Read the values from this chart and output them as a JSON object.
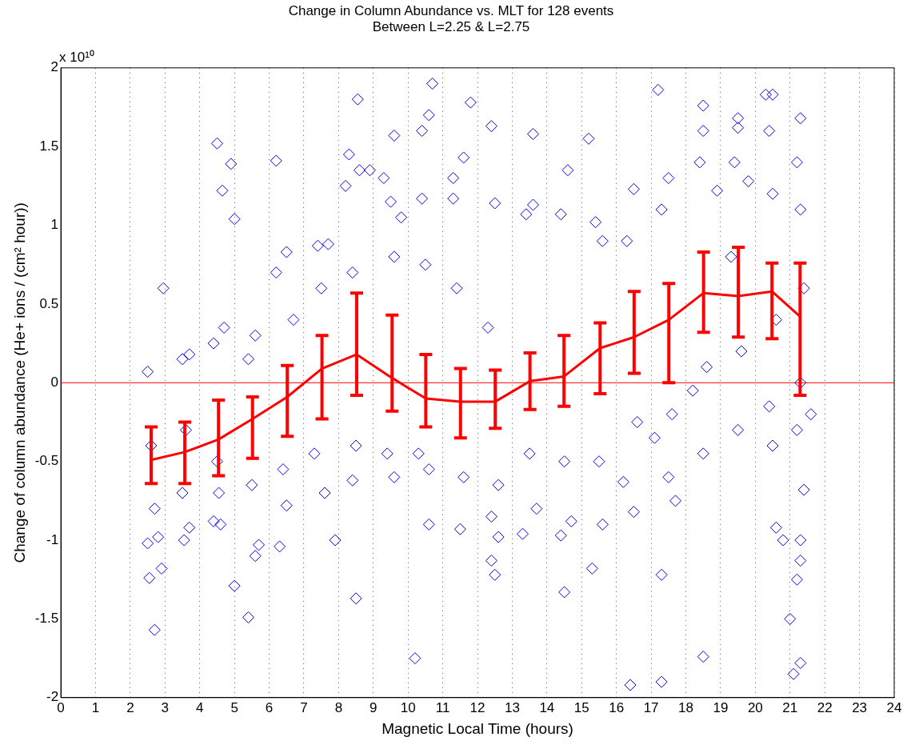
{
  "chart_data": {
    "type": "scatter",
    "title": "Change in Column Abundance vs. MLT for 128 events",
    "subtitle": "Between L=2.25 & L=2.75",
    "xlabel": "Magnetic Local Time (hours)",
    "ylabel": "Change of column abundance (He+ ions / (cm² hour))",
    "annotations": [
      "x 10¹⁰"
    ],
    "xlim": [
      0,
      24
    ],
    "xticks": [
      0,
      1,
      2,
      3,
      4,
      5,
      6,
      7,
      8,
      9,
      10,
      11,
      12,
      13,
      14,
      15,
      16,
      17,
      18,
      19,
      20,
      21,
      22,
      23,
      24
    ],
    "ylim": [
      -2,
      2
    ],
    "yticks": [
      -2,
      -1.5,
      -1,
      -0.5,
      0,
      0.5,
      1,
      1.5,
      2
    ],
    "grid": "x",
    "legend": false,
    "ref_lines": [
      {
        "axis": "y",
        "value": 0,
        "color": "#ff0000"
      }
    ],
    "series": [
      {
        "color": "#0000ff",
        "marker": "diamond",
        "x": [
          2.95,
          2.7,
          4.5,
          4.65,
          4.9,
          5.0,
          5.0,
          5.4,
          6.2,
          8.3,
          8.55,
          8.5,
          9.6,
          10.4,
          10.6,
          10.7,
          10.2,
          11.8,
          11.6,
          12.4,
          12.5,
          13.6,
          14.5,
          15.2,
          16.4,
          17.2,
          17.3,
          17.3,
          18.5,
          18.5,
          19.5,
          20.3,
          20.5,
          20.6,
          21.0,
          21.1,
          21.3,
          21.3,
          21.6,
          21.3,
          2.5,
          2.6,
          2.7,
          2.5,
          2.55,
          2.8,
          2.9,
          3.5,
          3.7,
          3.6,
          3.5,
          3.7,
          3.55,
          4.4,
          4.7,
          4.5,
          4.6,
          4.4,
          4.55,
          5.4,
          5.6,
          5.5,
          5.6,
          5.7,
          6.2,
          6.5,
          6.7,
          6.4,
          6.5,
          6.3,
          7.4,
          7.7,
          7.5,
          7.3,
          7.6,
          7.9,
          8.2,
          8.6,
          8.4,
          8.5,
          8.4,
          8.9,
          9.3,
          9.5,
          9.6,
          9.4,
          9.6,
          9.8,
          10.4,
          10.5,
          10.3,
          10.6,
          10.6,
          11.3,
          11.4,
          11.6,
          11.5,
          11.3,
          12.3,
          12.5,
          12.6,
          12.4,
          12.6,
          12.4,
          13.4,
          13.6,
          13.5,
          13.3,
          13.7,
          14.4,
          14.6,
          14.5,
          14.4,
          14.7,
          15.4,
          15.6,
          15.5,
          15.6,
          15.3,
          16.3,
          16.5,
          16.6,
          16.5,
          16.2,
          17.3,
          17.5,
          17.6,
          17.5,
          17.7,
          17.1,
          18.4,
          18.5,
          18.6,
          18.5,
          18.2,
          18.9,
          19.4,
          19.5,
          19.6,
          19.5,
          19.3,
          19.8,
          20.4,
          20.5,
          20.6,
          20.4,
          20.5,
          20.8,
          21.2,
          21.3,
          21.4,
          21.3,
          21.2,
          21.4,
          21.3,
          21.2
        ],
        "values": [
          0.6,
          -1.57,
          1.52,
          1.22,
          1.39,
          1.04,
          -1.29,
          -1.49,
          1.41,
          1.45,
          1.8,
          -1.37,
          1.57,
          1.6,
          1.7,
          1.9,
          -1.75,
          1.78,
          1.43,
          1.63,
          -1.22,
          1.58,
          -1.33,
          1.55,
          -1.92,
          1.86,
          -1.22,
          -1.9,
          1.76,
          -1.74,
          1.68,
          1.83,
          1.83,
          -0.92,
          -1.5,
          -1.85,
          1.68,
          -1.78,
          -0.2,
          -1.13,
          0.07,
          -0.4,
          -0.8,
          -1.02,
          -1.24,
          -0.98,
          -1.18,
          0.15,
          0.18,
          -0.3,
          -0.7,
          -0.92,
          -1.0,
          0.25,
          0.35,
          -0.5,
          -0.9,
          -0.88,
          -0.7,
          0.15,
          0.3,
          -0.65,
          -1.1,
          -1.03,
          0.7,
          0.83,
          0.4,
          -0.55,
          -0.78,
          -1.04,
          0.87,
          0.88,
          0.6,
          -0.45,
          -0.7,
          -1.0,
          1.25,
          1.35,
          0.7,
          -0.4,
          -0.62,
          1.35,
          1.3,
          1.15,
          0.8,
          -0.45,
          -0.6,
          1.05,
          1.17,
          0.75,
          -0.45,
          -0.9,
          -0.55,
          1.3,
          0.6,
          -0.6,
          -0.93,
          1.17,
          0.35,
          1.14,
          -0.65,
          -0.85,
          -0.98,
          -1.13,
          1.07,
          1.13,
          -0.45,
          -0.96,
          -0.8,
          1.07,
          1.35,
          -0.5,
          -0.97,
          -0.88,
          1.02,
          0.9,
          -0.5,
          -0.9,
          -1.18,
          0.9,
          1.23,
          -0.25,
          -0.82,
          -0.63,
          1.1,
          1.3,
          -0.2,
          -0.6,
          -0.75,
          -0.35,
          1.4,
          1.6,
          0.1,
          -0.45,
          -0.05,
          1.22,
          1.4,
          1.62,
          0.2,
          -0.3,
          0.8,
          1.28,
          1.6,
          1.2,
          0.4,
          -0.15,
          -0.4,
          -1.0,
          1.4,
          1.1,
          0.6,
          0.0,
          -0.3,
          -0.68,
          -1.0,
          -1.25
        ]
      },
      {
        "type": "line",
        "color": "#ff0000",
        "marker": "none",
        "x": [
          2.6,
          3.57,
          4.54,
          5.52,
          6.52,
          7.52,
          8.52,
          9.54,
          10.51,
          11.51,
          12.51,
          13.51,
          14.49,
          15.53,
          16.51,
          17.51,
          18.51,
          19.51,
          20.48,
          21.29
        ],
        "values": [
          -0.49,
          -0.44,
          -0.36,
          -0.23,
          -0.09,
          0.09,
          0.18,
          0.03,
          -0.1,
          -0.12,
          -0.12,
          0.01,
          0.04,
          0.22,
          0.29,
          0.4,
          0.57,
          0.55,
          0.58,
          0.42
        ],
        "errors": [
          [
            -0.64,
            -0.28
          ],
          [
            -0.64,
            -0.25
          ],
          [
            -0.59,
            -0.11
          ],
          [
            -0.48,
            -0.09
          ],
          [
            -0.34,
            0.11
          ],
          [
            -0.23,
            0.3
          ],
          [
            -0.08,
            0.57
          ],
          [
            -0.18,
            0.43
          ],
          [
            -0.28,
            0.18
          ],
          [
            -0.35,
            0.09
          ],
          [
            -0.29,
            0.08
          ],
          [
            -0.17,
            0.19
          ],
          [
            -0.15,
            0.3
          ],
          [
            -0.07,
            0.38
          ],
          [
            0.06,
            0.58
          ],
          [
            0.0,
            0.63
          ],
          [
            0.32,
            0.83
          ],
          [
            0.29,
            0.86
          ],
          [
            0.28,
            0.76
          ],
          [
            -0.08,
            0.76
          ]
        ]
      }
    ]
  }
}
